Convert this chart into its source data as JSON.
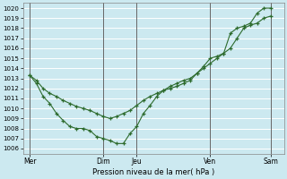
{
  "xlabel": "Pression niveau de la mer( hPa )",
  "background_color": "#cce9f0",
  "grid_color": "#ffffff",
  "line_color": "#2d6b2d",
  "ylim": [
    1005.5,
    1020.5
  ],
  "yticks": [
    1006,
    1007,
    1008,
    1009,
    1010,
    1011,
    1012,
    1013,
    1014,
    1015,
    1016,
    1017,
    1018,
    1019,
    1020
  ],
  "x_day_labels": [
    "Mer",
    "Dim",
    "Jeu",
    "Ven",
    "Sam"
  ],
  "x_day_positions": [
    0,
    5.5,
    8,
    13.5,
    18
  ],
  "x_vlines": [
    0,
    5.5,
    8,
    13.5,
    18
  ],
  "xlim": [
    -0.5,
    19.0
  ],
  "series1_x": [
    0,
    0.5,
    1,
    1.5,
    2,
    2.5,
    3,
    3.5,
    4,
    4.5,
    5,
    5.5,
    6,
    6.5,
    7,
    7.5,
    8,
    8.5,
    9,
    9.5,
    10,
    10.5,
    11,
    11.5,
    12,
    12.5,
    13,
    13.5,
    14,
    14.5,
    15,
    15.5,
    16,
    16.5,
    17,
    17.5,
    18
  ],
  "series1_y": [
    1013.3,
    1012.8,
    1012.0,
    1011.5,
    1011.2,
    1010.8,
    1010.5,
    1010.2,
    1010.0,
    1009.8,
    1009.5,
    1009.2,
    1009.0,
    1009.2,
    1009.5,
    1009.8,
    1010.3,
    1010.8,
    1011.2,
    1011.5,
    1011.8,
    1012.2,
    1012.5,
    1012.8,
    1013.0,
    1013.5,
    1014.0,
    1014.5,
    1015.0,
    1015.5,
    1016.0,
    1017.0,
    1018.0,
    1018.3,
    1018.5,
    1019.0,
    1019.2
  ],
  "series2_x": [
    0,
    0.5,
    1,
    1.5,
    2,
    2.5,
    3,
    3.5,
    4,
    4.5,
    5,
    5.5,
    6,
    6.5,
    7,
    7.5,
    8,
    8.5,
    9,
    9.5,
    10,
    10.5,
    11,
    11.5,
    12,
    12.5,
    13,
    13.5,
    14,
    14.5,
    15,
    15.5,
    16,
    16.5,
    17,
    17.5,
    18
  ],
  "series2_y": [
    1013.3,
    1012.5,
    1011.2,
    1010.5,
    1009.5,
    1008.8,
    1008.2,
    1008.0,
    1008.0,
    1007.8,
    1007.2,
    1007.0,
    1006.8,
    1006.5,
    1006.5,
    1007.5,
    1008.2,
    1009.5,
    1010.3,
    1011.2,
    1011.8,
    1012.0,
    1012.2,
    1012.5,
    1012.8,
    1013.5,
    1014.2,
    1015.0,
    1015.2,
    1015.5,
    1017.5,
    1018.0,
    1018.2,
    1018.5,
    1019.5,
    1020.0,
    1020.0
  ]
}
